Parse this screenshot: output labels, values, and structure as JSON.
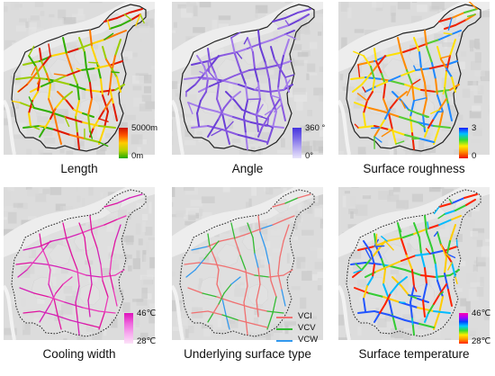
{
  "panels": [
    {
      "caption": "Length",
      "legend_type": "gradient",
      "gradient": [
        "#cc1100",
        "#ff5500",
        "#ffcc00",
        "#b8d200",
        "#22aa00"
      ],
      "legend_max": "5000m",
      "legend_min": "0m",
      "roads": "standard",
      "road_palette": [
        "#e01800",
        "#ff7a00",
        "#ffd400",
        "#9acd00",
        "#2fae00"
      ]
    },
    {
      "caption": "Angle",
      "legend_type": "gradient",
      "gradient": [
        "#4433dd",
        "#7a6ae8",
        "#b6abf2",
        "#e8e4fb"
      ],
      "legend_max": "360 °",
      "legend_min": "0°",
      "roads": "standard",
      "road_palette": [
        "#6b3fd6",
        "#8a5ae0",
        "#a47cea",
        "#7c4fdc"
      ]
    },
    {
      "caption": "Surface roughness",
      "legend_type": "gradient",
      "gradient": [
        "#1a1aff",
        "#00c0ff",
        "#33dd33",
        "#ffee00",
        "#ff8800",
        "#ee1100"
      ],
      "legend_max": "3",
      "legend_min": "0",
      "roads": "standard",
      "road_palette": [
        "#ee2200",
        "#ff8a00",
        "#ffe000",
        "#55cc33",
        "#1e88ff"
      ]
    },
    {
      "caption": "Cooling width",
      "legend_type": "gradient",
      "gradient": [
        "#dd11bb",
        "#ee66dd",
        "#f7aaee",
        "#fce2f8"
      ],
      "legend_max": "46℃",
      "legend_min": "28℃",
      "roads": "sparse",
      "road_palette": [
        "#e0149e",
        "#d421b6",
        "#ea3ab8"
      ]
    },
    {
      "caption": "Underlying surface type",
      "legend_type": "categorical",
      "categories": [
        {
          "label": "VCI",
          "color": "#f07070"
        },
        {
          "label": "VCV",
          "color": "#33bb33"
        },
        {
          "label": "VCW",
          "color": "#3399ee"
        }
      ],
      "roads": "sparse",
      "road_palette": [
        "#f07070",
        "#f07070",
        "#f07070",
        "#33bb33",
        "#3399ee"
      ]
    },
    {
      "caption": "Surface temperature",
      "legend_type": "gradient",
      "gradient": [
        "#ff00aa",
        "#aa00ff",
        "#0044ff",
        "#00ccff",
        "#33dd33",
        "#ffee00",
        "#ff9900",
        "#ff2200"
      ],
      "legend_max": "46℃",
      "legend_min": "28℃",
      "roads": "standard",
      "road_palette": [
        "#ff2200",
        "#ffcc00",
        "#33cc33",
        "#00bbff",
        "#2255ff"
      ]
    }
  ]
}
